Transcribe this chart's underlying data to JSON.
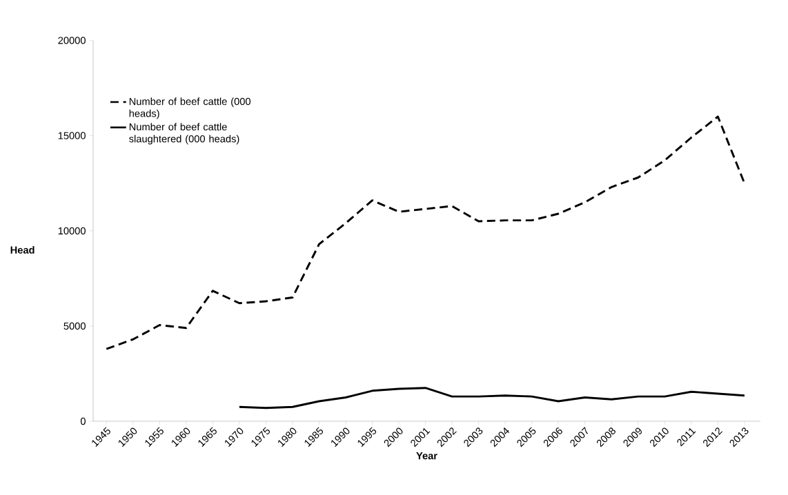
{
  "chart_data": {
    "type": "line",
    "xlabel": "Year",
    "ylabel": "Head",
    "categories": [
      "1945",
      "1950",
      "1955",
      "1960",
      "1965",
      "1970",
      "1975",
      "1980",
      "1985",
      "1990",
      "1995",
      "2000",
      "2001",
      "2002",
      "2003",
      "2004",
      "2005",
      "2006",
      "2007",
      "2008",
      "2009",
      "2010",
      "2011",
      "2012",
      "2013"
    ],
    "series": [
      {
        "name": "Number of beef cattle (000 heads)",
        "color": "#000000",
        "line_style": "dashed",
        "values": [
          3800,
          4300,
          5050,
          4900,
          6850,
          6200,
          6300,
          6500,
          9300,
          10400,
          11600,
          11000,
          11150,
          11300,
          10500,
          10550,
          10550,
          10900,
          11500,
          12300,
          12800,
          13700,
          14900,
          16000,
          12500
        ]
      },
      {
        "name": "Number of beef cattle slaughtered (000 heads)",
        "color": "#000000",
        "line_style": "solid",
        "values": [
          null,
          null,
          null,
          null,
          null,
          750,
          700,
          750,
          1050,
          1250,
          1600,
          1700,
          1750,
          1300,
          1300,
          1350,
          1300,
          1050,
          1250,
          1150,
          1300,
          1300,
          1550,
          1450,
          1350
        ]
      }
    ],
    "ylim": [
      0,
      20000
    ],
    "yticks": [
      0,
      5000,
      10000,
      15000,
      20000
    ],
    "grid": false,
    "legend": "top left"
  }
}
